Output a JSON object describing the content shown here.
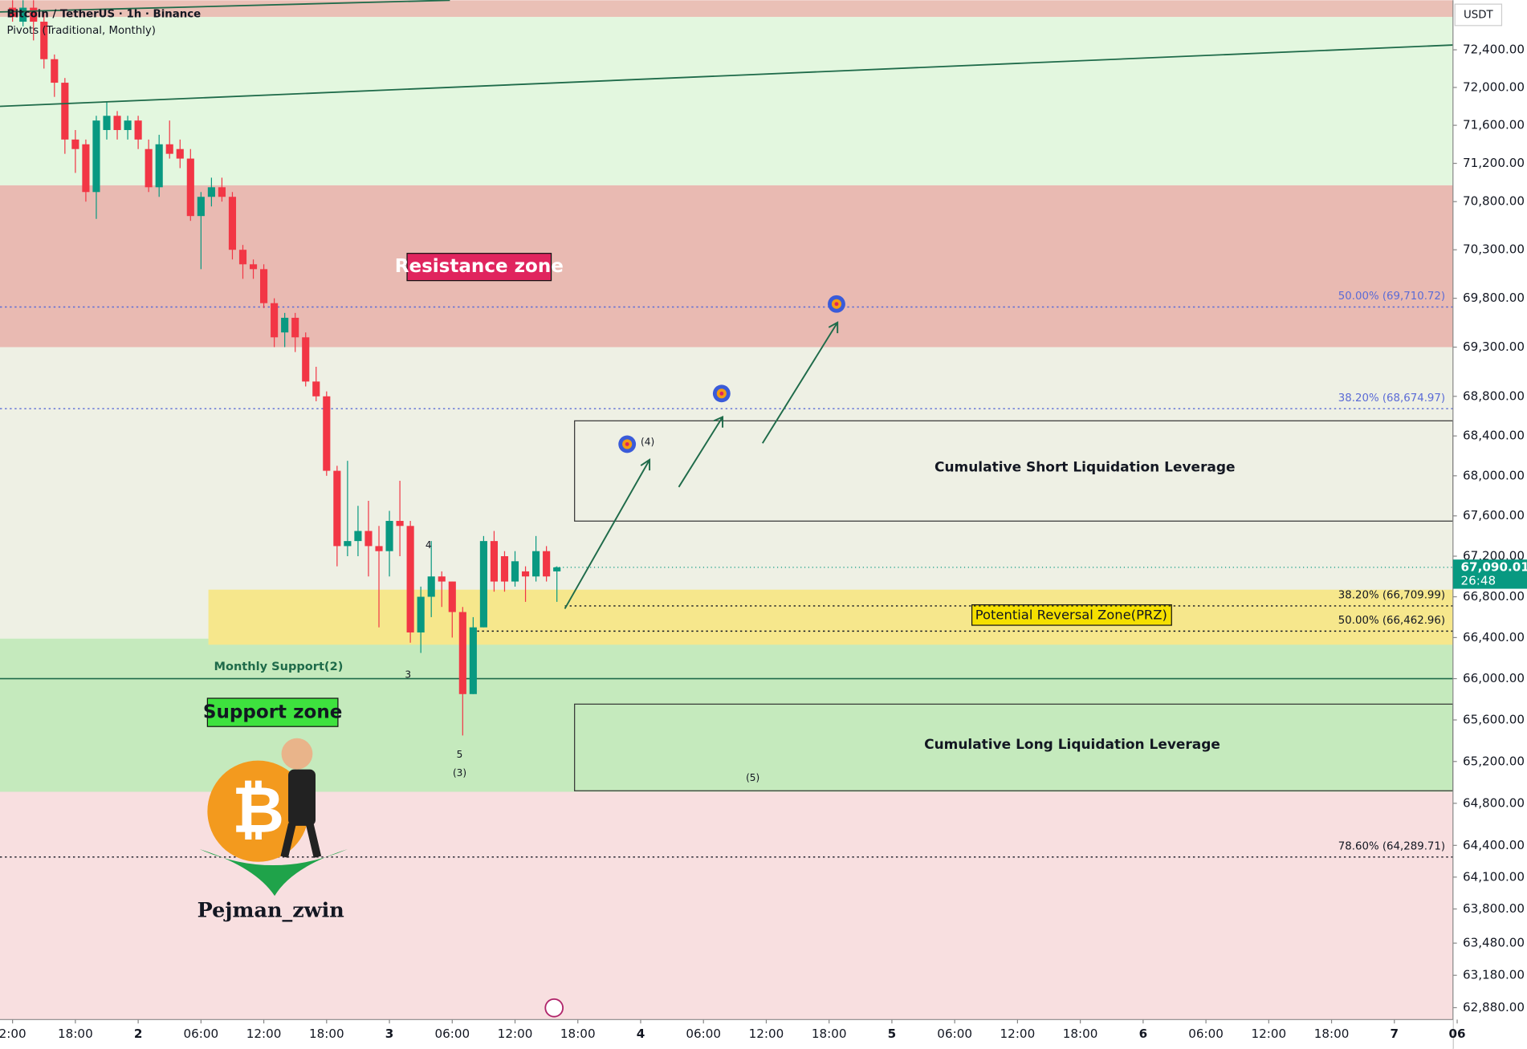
{
  "header": {
    "title": "Bitcoin / TetherUS · 1h · Binance",
    "indicator": "Pivots (Traditional, Monthly)",
    "currency": "USDT"
  },
  "chart_data": {
    "type": "candlestick",
    "log": true,
    "grid": false,
    "up_color": "#089981",
    "down_color": "#f23645",
    "xlim": [
      10.8,
      149.6
    ],
    "ylim": [
      62770,
      72930
    ],
    "xticks": [
      {
        "value": 12,
        "label": "2:00"
      },
      {
        "value": 18,
        "label": "18:00"
      },
      {
        "value": 24,
        "label": "2"
      },
      {
        "value": 30,
        "label": "06:00"
      },
      {
        "value": 36,
        "label": "12:00"
      },
      {
        "value": 42,
        "label": "18:00"
      },
      {
        "value": 48,
        "label": "3"
      },
      {
        "value": 54,
        "label": "06:00"
      },
      {
        "value": 60,
        "label": "12:00"
      },
      {
        "value": 66,
        "label": "18:00"
      },
      {
        "value": 72,
        "label": "4"
      },
      {
        "value": 78,
        "label": "06:00"
      },
      {
        "value": 84,
        "label": "12:00"
      },
      {
        "value": 90,
        "label": "18:00"
      },
      {
        "value": 96,
        "label": "5"
      },
      {
        "value": 102,
        "label": "06:00"
      },
      {
        "value": 108,
        "label": "12:00"
      },
      {
        "value": 114,
        "label": "18:00"
      },
      {
        "value": 120,
        "label": "6"
      },
      {
        "value": 126,
        "label": "06:00"
      },
      {
        "value": 132,
        "label": "12:00"
      },
      {
        "value": 138,
        "label": "18:00"
      },
      {
        "value": 144,
        "label": "7"
      },
      {
        "value": 150,
        "label": "06"
      }
    ],
    "yticks": [
      {
        "value": 72400,
        "label": "72,400.00"
      },
      {
        "value": 72000,
        "label": "72,000.00"
      },
      {
        "value": 71600,
        "label": "71,600.00"
      },
      {
        "value": 71200,
        "label": "71,200.00"
      },
      {
        "value": 70800,
        "label": "70,800.00"
      },
      {
        "value": 70300,
        "label": "70,300.00"
      },
      {
        "value": 69800,
        "label": "69,800.00"
      },
      {
        "value": 69300,
        "label": "69,300.00"
      },
      {
        "value": 68800,
        "label": "68,800.00"
      },
      {
        "value": 68400,
        "label": "68,400.00"
      },
      {
        "value": 68000,
        "label": "68,000.00"
      },
      {
        "value": 67600,
        "label": "67,600.00"
      },
      {
        "value": 67200,
        "label": "67,200.00"
      },
      {
        "value": 66800,
        "label": "66,800.00"
      },
      {
        "value": 66400,
        "label": "66,400.00"
      },
      {
        "value": 66000,
        "label": "66,000.00"
      },
      {
        "value": 65600,
        "label": "65,600.00"
      },
      {
        "value": 65200,
        "label": "65,200.00"
      },
      {
        "value": 64800,
        "label": "64,800.00"
      },
      {
        "value": 64400,
        "label": "64,400.00"
      },
      {
        "value": 64100,
        "label": "64,100.00"
      },
      {
        "value": 63800,
        "label": "63,800.00"
      },
      {
        "value": 63480,
        "label": "63,480.00"
      },
      {
        "value": 63180,
        "label": "63,180.00"
      },
      {
        "value": 62880,
        "label": "62,880.00"
      }
    ],
    "zones": [
      {
        "from": 72750,
        "to": 72930,
        "color": "#eac0b6"
      },
      {
        "from": 70970,
        "to": 72750,
        "color": "#e3f7df"
      },
      {
        "from": 69300,
        "to": 70970,
        "color": "#e9bab2"
      },
      {
        "from": 66390,
        "to": 69300,
        "color": "#eef0e4"
      },
      {
        "from": 64910,
        "to": 66390,
        "color": "#c5eabd"
      },
      {
        "from": 62770,
        "to": 64910,
        "color": "#f8dfe0"
      }
    ],
    "prz": {
      "from": 66330,
      "to": 66870,
      "color": "#f6e78c",
      "label": "Potential Reversal Zone(PRZ)"
    },
    "pivot": {
      "value": 66000,
      "label": "Monthly Support(2)"
    },
    "levels": [
      {
        "value": 69710.72,
        "label": "50.00% (69,710.72)",
        "color": "#5b6bd6"
      },
      {
        "value": 68674.97,
        "label": "38.20% (68,674.97)",
        "color": "#5b6bd6"
      },
      {
        "value": 66709.99,
        "label": "38.20% (66,709.99)",
        "color": "#131722"
      },
      {
        "value": 66462.96,
        "label": "50.00% (66,462.96)",
        "color": "#131722"
      },
      {
        "value": 64289.71,
        "label": "78.60% (64,289.71)",
        "color": "#131722"
      }
    ],
    "last_price": {
      "value": 67090.01,
      "label": "67,090.01",
      "countdown": "26:48"
    },
    "candles": {
      "x": [
        12,
        13,
        14,
        15,
        16,
        17,
        18,
        19,
        20,
        21,
        22,
        23,
        24,
        25,
        26,
        27,
        28,
        29,
        30,
        31,
        32,
        33,
        34,
        35,
        36,
        37,
        38,
        39,
        40,
        41,
        42,
        43,
        44,
        45,
        46,
        47,
        48,
        49,
        50,
        51,
        52,
        53,
        54,
        55,
        56,
        57,
        58,
        59,
        60,
        61,
        62,
        63,
        64
      ],
      "open": [
        72850,
        72700,
        72850,
        72700,
        72300,
        72050,
        71450,
        71400,
        70900,
        71550,
        71700,
        71550,
        71650,
        71350,
        70950,
        71400,
        71350,
        71250,
        70650,
        70850,
        70950,
        70850,
        70300,
        70150,
        70100,
        69750,
        69450,
        69600,
        69400,
        68950,
        68800,
        68050,
        67300,
        67350,
        67450,
        67300,
        67250,
        67550,
        67500,
        66450,
        66800,
        67000,
        66950,
        66650,
        65850,
        66500,
        67350,
        67200,
        66950,
        67050,
        67000,
        67250,
        67050
      ],
      "high": [
        72930,
        72930,
        72930,
        72800,
        72350,
        72100,
        71550,
        71450,
        71700,
        71850,
        71750,
        71700,
        71700,
        71450,
        71500,
        71650,
        71450,
        71350,
        70900,
        71050,
        71050,
        70900,
        70350,
        70200,
        70150,
        69800,
        69650,
        69650,
        69450,
        69100,
        68850,
        68100,
        68150,
        67700,
        67750,
        67500,
        67650,
        67950,
        67550,
        66900,
        67350,
        67050,
        66950,
        66700,
        66600,
        67400,
        67450,
        67250,
        67250,
        67100,
        67400,
        67300,
        67100
      ],
      "low": [
        72700,
        72650,
        72500,
        72200,
        71900,
        71300,
        71100,
        70800,
        70620,
        71450,
        71450,
        71450,
        71350,
        70900,
        70850,
        71250,
        71150,
        70600,
        70100,
        70750,
        70800,
        70200,
        70000,
        70000,
        69700,
        69300,
        69300,
        69250,
        68900,
        68750,
        68000,
        67100,
        67200,
        67200,
        67000,
        66500,
        67000,
        67200,
        66350,
        66250,
        66600,
        66700,
        66400,
        65450,
        65850,
        66500,
        66850,
        66850,
        66900,
        66750,
        66950,
        66950,
        66750
      ],
      "close": [
        72750,
        72850,
        72700,
        72300,
        72050,
        71450,
        71350,
        70900,
        71650,
        71700,
        71550,
        71650,
        71450,
        70950,
        71400,
        71300,
        71250,
        70650,
        70850,
        70950,
        70850,
        70300,
        70150,
        70100,
        69750,
        69400,
        69600,
        69400,
        68950,
        68800,
        68050,
        67300,
        67350,
        67450,
        67300,
        67250,
        67550,
        67500,
        66450,
        66800,
        67000,
        66950,
        66650,
        65850,
        66500,
        67350,
        66950,
        66950,
        67150,
        67000,
        67250,
        67000,
        67090
      ]
    }
  },
  "annotations": {
    "resistance": "Resistance zone",
    "support": "Support zone",
    "short_box": "Cumulative Short Liquidation Leverage",
    "long_box": "Cumulative Long Liquidation Leverage",
    "wave_4": "4",
    "wave_3": "3",
    "wave_5": "5",
    "wave_c3": "(3)",
    "wave_c4": "(4)",
    "wave_c5": "(5)",
    "author": "Pejman_zwin"
  }
}
